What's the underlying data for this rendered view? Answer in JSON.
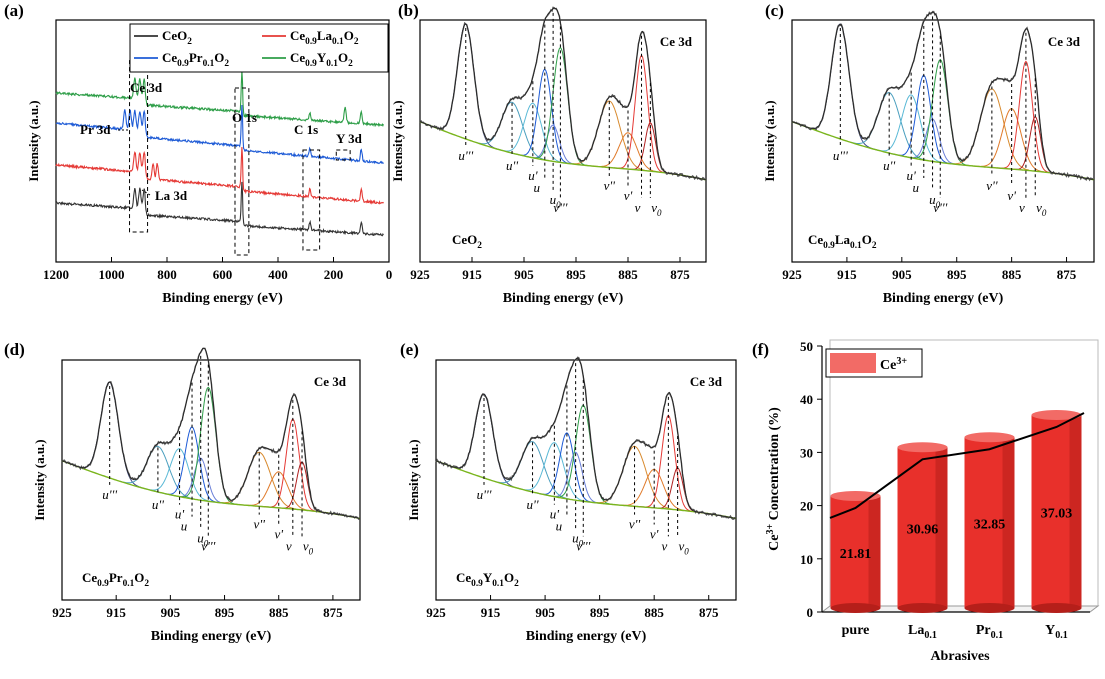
{
  "figure": {
    "xlabel_be": "Binding energy (eV)",
    "ylabel_int": "Intensity (a.u.)",
    "ce3d": "Ce 3d"
  },
  "panel_a": {
    "tag": "(a)",
    "xlim": [
      1200,
      0
    ],
    "xticks": [
      "1200",
      "1000",
      "800",
      "600",
      "400",
      "200",
      "0"
    ],
    "legend": [
      {
        "name": "CeO2",
        "color": "#333333"
      },
      {
        "name": "Ce0.9La0.1O2",
        "color": "#e53935"
      },
      {
        "name": "Ce0.9Pr0.1O2",
        "color": "#1e5bd6"
      },
      {
        "name": "Ce0.9Y0.1O2",
        "color": "#2e9e48"
      }
    ],
    "annotations": [
      "Ce 3d",
      "Pr 3d",
      "La 3d",
      "O 1s",
      "C 1s",
      "Y 3d"
    ]
  },
  "xps_ticks": [
    "925",
    "915",
    "905",
    "895",
    "885",
    "875"
  ],
  "peak_labels": [
    "u'''",
    "u''",
    "u'",
    "u",
    "u0",
    "v'''",
    "v''",
    "v'",
    "v",
    "v0"
  ],
  "panels_ce3d": [
    {
      "tag": "(b)",
      "sample": "CeO2"
    },
    {
      "tag": "(c)",
      "sample": "Ce0.9La0.1O2"
    },
    {
      "tag": "(d)",
      "sample": "Ce0.9Pr0.1O2"
    },
    {
      "tag": "(e)",
      "sample": "Ce0.9Y0.1O2"
    }
  ],
  "chart_data": [
    {
      "type": "line",
      "panel": "a",
      "xlabel": "Binding energy (eV)",
      "ylabel": "Intensity (a.u.)",
      "xlim": [
        1200,
        0
      ],
      "series": [
        {
          "name": "CeO2",
          "peaks_eV": [
            916,
            898,
            882,
            530,
            285,
            100
          ]
        },
        {
          "name": "Ce0.9La0.1O2",
          "peaks_eV": [
            916,
            898,
            882,
            850,
            835,
            530,
            285,
            100
          ]
        },
        {
          "name": "Ce0.9Pr0.1O2",
          "peaks_eV": [
            952,
            933,
            916,
            898,
            882,
            530,
            285,
            100
          ]
        },
        {
          "name": "Ce0.9Y0.1O2",
          "peaks_eV": [
            916,
            898,
            882,
            530,
            285,
            158,
            100
          ]
        }
      ]
    },
    {
      "type": "line",
      "panel": "b-e",
      "title": "Ce 3d",
      "xlabel": "Binding energy (eV)",
      "ylabel": "Intensity (a.u.)",
      "xlim": [
        925,
        870
      ],
      "peak_positions_eV": {
        "u'''": 916.2,
        "u''": 907.3,
        "u'": 903.3,
        "u": 901.0,
        "u0": 899.4,
        "v'''": 898.0,
        "v''": 888.6,
        "v'": 885.0,
        "v": 882.4,
        "v0": 880.7
      }
    },
    {
      "type": "bar",
      "panel": "f",
      "categories": [
        "pure",
        "La0.1",
        "Pr0.1",
        "Y0.1"
      ],
      "values": [
        21.81,
        30.96,
        32.85,
        37.03
      ],
      "series": [
        {
          "name": "Ce3+",
          "values": [
            21.81,
            30.96,
            32.85,
            37.03
          ]
        }
      ],
      "xlabel": "Abrasives",
      "ylabel": "Ce3+ Concentration (%)",
      "ylim": [
        0,
        50
      ],
      "yticks": [
        "0",
        "10",
        "20",
        "30",
        "40",
        "50"
      ],
      "bar_color": "#e8302b",
      "tag": "(f)"
    }
  ]
}
